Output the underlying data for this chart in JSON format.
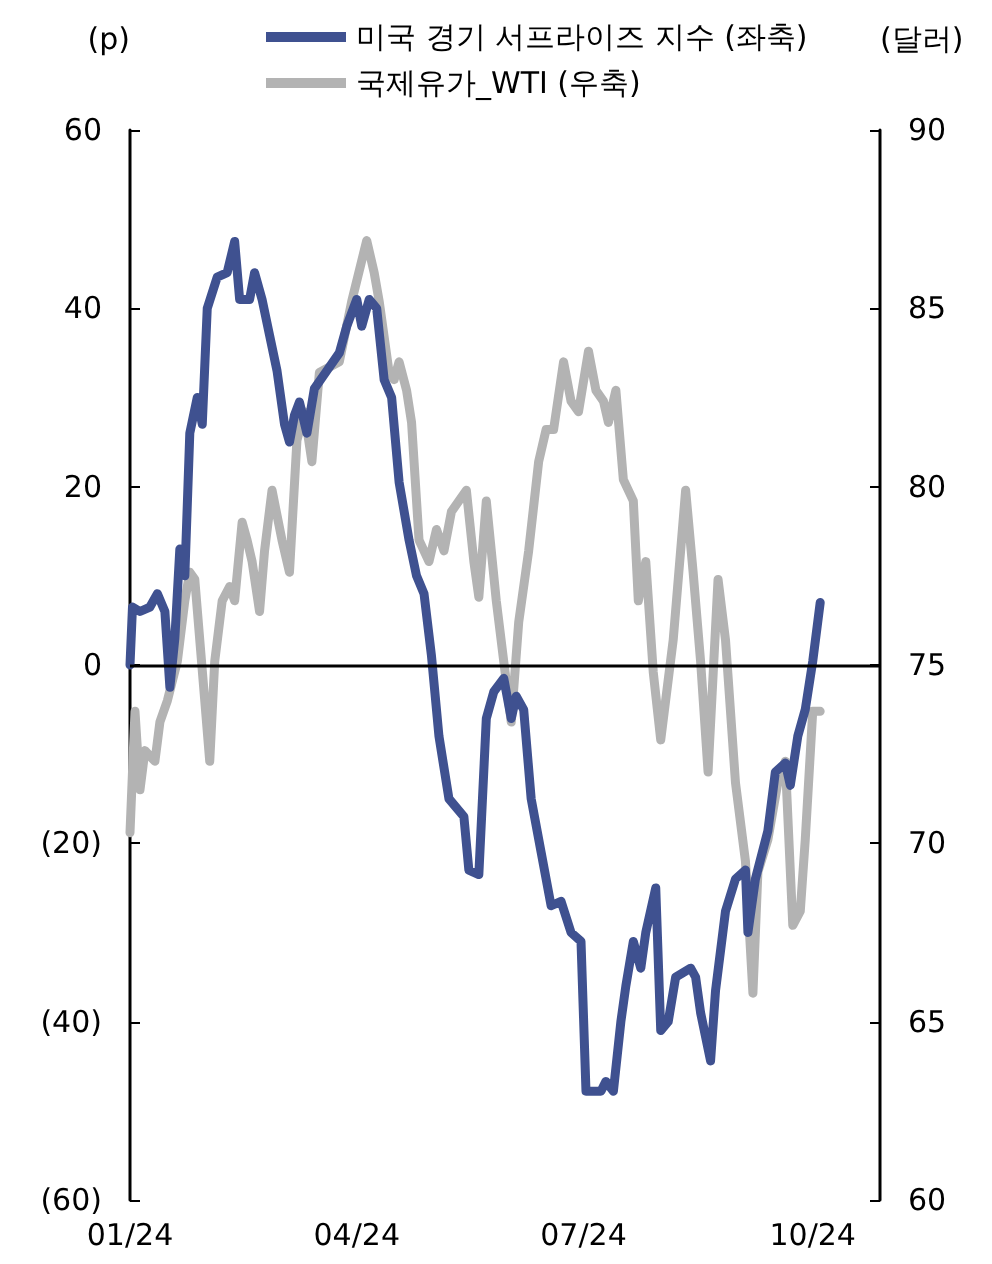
{
  "chart_data": {
    "type": "line",
    "ylabel": "(p)",
    "y2label": "(달러)",
    "legend": "top",
    "marker": "none",
    "line_style": "solid",
    "grid": false,
    "xlim": [
      "2024-01-01",
      "2024-10-28"
    ],
    "xticks": [
      {
        "value": "2024-01-01",
        "label": "01/24"
      },
      {
        "value": "2024-04-01",
        "label": "04/24"
      },
      {
        "value": "2024-07-01",
        "label": "07/24"
      },
      {
        "value": "2024-10-01",
        "label": "10/24"
      }
    ],
    "ylim": [
      -60,
      60
    ],
    "yticks": [
      {
        "value": -60,
        "label": "(60)"
      },
      {
        "value": -40,
        "label": "(40)"
      },
      {
        "value": -20,
        "label": "(20)"
      },
      0,
      20,
      40,
      60
    ],
    "ref_lines": [
      {
        "axis": "y",
        "value": 0,
        "color": "#000000"
      }
    ],
    "y2lim": [
      60,
      90
    ],
    "y2ticks": [
      60,
      65,
      70,
      75,
      80,
      85,
      90
    ],
    "series": [
      {
        "name": "미국 경기 서프라이즈 지수 (좌축)",
        "color": "#3f5190",
        "x": [
          "2024-01-01",
          "2024-01-02",
          "2024-01-05",
          "2024-01-09",
          "2024-01-12",
          "2024-01-15",
          "2024-01-17",
          "2024-01-19",
          "2024-01-21",
          "2024-01-23",
          "2024-01-25",
          "2024-01-28",
          "2024-01-30",
          "2024-02-01",
          "2024-02-05",
          "2024-02-09",
          "2024-02-12",
          "2024-02-14",
          "2024-02-18",
          "2024-02-20",
          "2024-02-23",
          "2024-02-26",
          "2024-02-29",
          "2024-03-03",
          "2024-03-05",
          "2024-03-07",
          "2024-03-09",
          "2024-03-12",
          "2024-03-15",
          "2024-03-20",
          "2024-03-25",
          "2024-03-28",
          "2024-04-01",
          "2024-04-03",
          "2024-04-06",
          "2024-04-09",
          "2024-04-12",
          "2024-04-15",
          "2024-04-18",
          "2024-04-22",
          "2024-04-25",
          "2024-04-28",
          "2024-05-01",
          "2024-05-04",
          "2024-05-08",
          "2024-05-14",
          "2024-05-16",
          "2024-05-20",
          "2024-05-23",
          "2024-05-26",
          "2024-05-30",
          "2024-06-02",
          "2024-06-04",
          "2024-06-07",
          "2024-06-10",
          "2024-06-14",
          "2024-06-18",
          "2024-06-22",
          "2024-06-26",
          "2024-06-30",
          "2024-07-02",
          "2024-07-08",
          "2024-07-10",
          "2024-07-13",
          "2024-07-16",
          "2024-07-18",
          "2024-07-21",
          "2024-07-24",
          "2024-07-26",
          "2024-07-30",
          "2024-08-01",
          "2024-08-04",
          "2024-08-07",
          "2024-08-13",
          "2024-08-15",
          "2024-08-17",
          "2024-08-21",
          "2024-08-23",
          "2024-08-27",
          "2024-08-31",
          "2024-09-04",
          "2024-09-05",
          "2024-09-08",
          "2024-09-13",
          "2024-09-16",
          "2024-09-20",
          "2024-09-22",
          "2024-09-25",
          "2024-09-28",
          "2024-10-01",
          "2024-10-04"
        ],
        "values": [
          0,
          6.5,
          6,
          6.5,
          8,
          6,
          -2.5,
          3,
          13,
          10,
          26,
          30,
          27,
          40,
          43.5,
          44,
          47.5,
          41,
          41,
          44,
          41,
          37,
          33,
          27,
          25,
          28,
          29.5,
          26,
          31,
          33,
          35,
          38,
          41,
          38,
          41,
          40,
          32,
          30,
          20.5,
          14,
          10,
          8,
          1,
          -8,
          -15,
          -17,
          -23,
          -23.5,
          -6,
          -3,
          -1.5,
          -6,
          -3.5,
          -5,
          -15,
          -21,
          -27,
          -26.5,
          -30,
          -31,
          -47.8,
          -47.8,
          -46.7,
          -47.8,
          -40,
          -36,
          -31,
          -34,
          -30,
          -25,
          -41,
          -40,
          -35,
          -34,
          -35,
          -39,
          -44.4,
          -36.5,
          -27.6,
          -24,
          -23,
          -30,
          -24,
          -18.6,
          -12,
          -11,
          -13.5,
          -8,
          -5,
          0.4,
          7
        ]
      },
      {
        "name": "국제유가_WTI (우축)",
        "color": "#b3b3b3",
        "axis": "y2",
        "x": [
          "2024-01-01",
          "2024-01-03",
          "2024-01-05",
          "2024-01-07",
          "2024-01-11",
          "2024-01-13",
          "2024-01-16",
          "2024-01-20",
          "2024-01-23",
          "2024-01-25",
          "2024-01-27",
          "2024-01-31",
          "2024-02-02",
          "2024-02-04",
          "2024-02-07",
          "2024-02-10",
          "2024-02-12",
          "2024-02-15",
          "2024-02-17",
          "2024-02-19",
          "2024-02-22",
          "2024-02-24",
          "2024-02-27",
          "2024-03-02",
          "2024-03-05",
          "2024-03-08",
          "2024-03-11",
          "2024-03-14",
          "2024-03-17",
          "2024-03-25",
          "2024-03-30",
          "2024-04-05",
          "2024-04-08",
          "2024-04-10",
          "2024-04-14",
          "2024-04-16",
          "2024-04-18",
          "2024-04-21",
          "2024-04-23",
          "2024-04-26",
          "2024-04-30",
          "2024-05-03",
          "2024-05-06",
          "2024-05-09",
          "2024-05-15",
          "2024-05-18",
          "2024-05-20",
          "2024-05-23",
          "2024-05-27",
          "2024-05-30",
          "2024-06-02",
          "2024-06-05",
          "2024-06-09",
          "2024-06-13",
          "2024-06-16",
          "2024-06-19",
          "2024-06-23",
          "2024-06-26",
          "2024-06-29",
          "2024-07-03",
          "2024-07-06",
          "2024-07-09",
          "2024-07-11",
          "2024-07-14",
          "2024-07-17",
          "2024-07-21",
          "2024-07-23",
          "2024-07-26",
          "2024-07-29",
          "2024-08-01",
          "2024-08-06",
          "2024-08-11",
          "2024-08-14",
          "2024-08-17",
          "2024-08-20",
          "2024-08-24",
          "2024-08-27",
          "2024-08-31",
          "2024-09-04",
          "2024-09-07",
          "2024-09-09",
          "2024-09-13",
          "2024-09-17",
          "2024-09-20",
          "2024-09-23",
          "2024-09-26",
          "2024-09-28",
          "2024-10-01",
          "2024-10-04"
        ],
        "values": [
          70.3,
          73.7,
          71.5,
          72.6,
          72.3,
          73.4,
          74,
          75.1,
          76.8,
          77.6,
          77.4,
          74,
          72.3,
          75.1,
          76.8,
          77.2,
          76.8,
          79,
          78.5,
          77.9,
          76.5,
          78.2,
          79.9,
          78.5,
          77.6,
          81.3,
          82.1,
          80.7,
          83.2,
          83.5,
          85.2,
          86.9,
          86,
          85.2,
          83.2,
          83,
          83.5,
          82.7,
          81.8,
          78.5,
          77.9,
          78.8,
          78.2,
          79.3,
          79.9,
          77.9,
          76.9,
          79.6,
          76.8,
          75.1,
          73.4,
          76.2,
          78.2,
          80.7,
          81.6,
          81.6,
          83.5,
          82.4,
          82.1,
          83.8,
          82.7,
          82.4,
          81.8,
          82.7,
          80.2,
          79.6,
          76.8,
          77.9,
          74.8,
          72.9,
          75.7,
          79.9,
          77.6,
          75.1,
          72,
          77.4,
          75.7,
          71.7,
          69.5,
          65.8,
          69.2,
          70.1,
          71.7,
          72.3,
          67.7,
          68.1,
          70.1,
          73.7,
          73.7
        ]
      }
    ]
  }
}
